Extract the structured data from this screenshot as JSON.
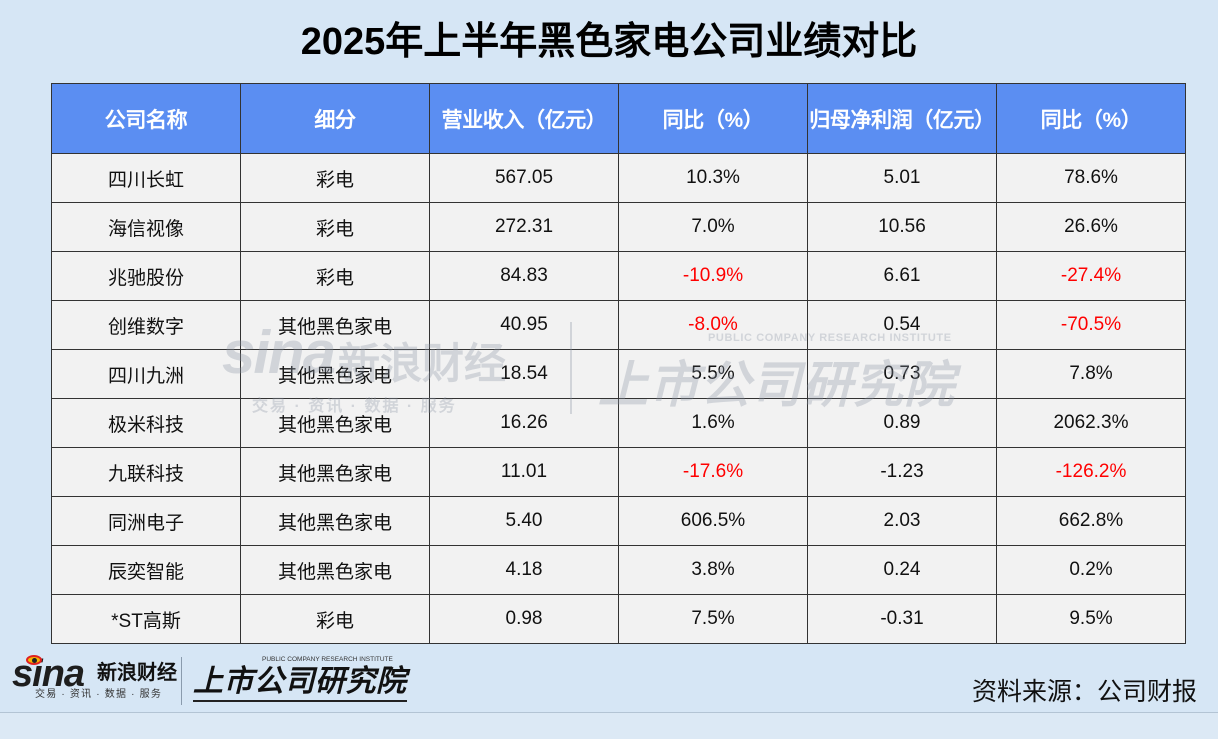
{
  "chart_data": {
    "type": "table",
    "title": "2025年上半年黑色家电公司业绩对比",
    "columns": [
      "公司名称",
      "细分",
      "营业收入（亿元）",
      "同比（%）",
      "归母净利润（亿元）",
      "同比（%）"
    ],
    "rows": [
      [
        "四川长虹",
        "彩电",
        "567.05",
        "10.3%",
        "5.01",
        "78.6%"
      ],
      [
        "海信视像",
        "彩电",
        "272.31",
        "7.0%",
        "10.56",
        "26.6%"
      ],
      [
        "兆驰股份",
        "彩电",
        "84.83",
        "-10.9%",
        "6.61",
        "-27.4%"
      ],
      [
        "创维数字",
        "其他黑色家电",
        "40.95",
        "-8.0%",
        "0.54",
        "-70.5%"
      ],
      [
        "四川九洲",
        "其他黑色家电",
        "18.54",
        "5.5%",
        "0.73",
        "7.8%"
      ],
      [
        "极米科技",
        "其他黑色家电",
        "16.26",
        "1.6%",
        "0.89",
        "2062.3%"
      ],
      [
        "九联科技",
        "其他黑色家电",
        "11.01",
        "-17.6%",
        "-1.23",
        "-126.2%"
      ],
      [
        "同洲电子",
        "其他黑色家电",
        "5.40",
        "606.5%",
        "2.03",
        "662.8%"
      ],
      [
        "辰奕智能",
        "其他黑色家电",
        "4.18",
        "3.8%",
        "0.24",
        "0.2%"
      ],
      [
        "*ST高斯",
        "彩电",
        "0.98",
        "7.5%",
        "-0.31",
        "9.5%"
      ]
    ]
  },
  "watermark": {
    "sina_wordmark": "sina",
    "sina_name": "新浪财经",
    "sina_tagline": "交易 · 资讯 · 数据 · 服务",
    "institute_english": "PUBLIC COMPANY RESEARCH INSTITUTE",
    "institute_name": "上市公司研究院"
  },
  "footer": {
    "sina_wordmark": "sina",
    "sina_name": "新浪财经",
    "sina_tagline": "交易 · 资讯 · 数据 · 服务",
    "institute_english": "PUBLIC COMPANY RESEARCH INSTITUTE",
    "institute_name": "上市公司研究院",
    "source": "资料来源：公司财报"
  },
  "icons": {
    "sina_logo_eye": "sina-eye-icon"
  },
  "colors": {
    "background": "#d6e6f5",
    "header_bg": "#5b8ef2",
    "header_text": "#ffffff",
    "row_bg": "#f2f2f2",
    "border": "#333333",
    "text": "#111111",
    "negative_growth": "#ff0000",
    "bottom_strip": "#dce9f5"
  }
}
